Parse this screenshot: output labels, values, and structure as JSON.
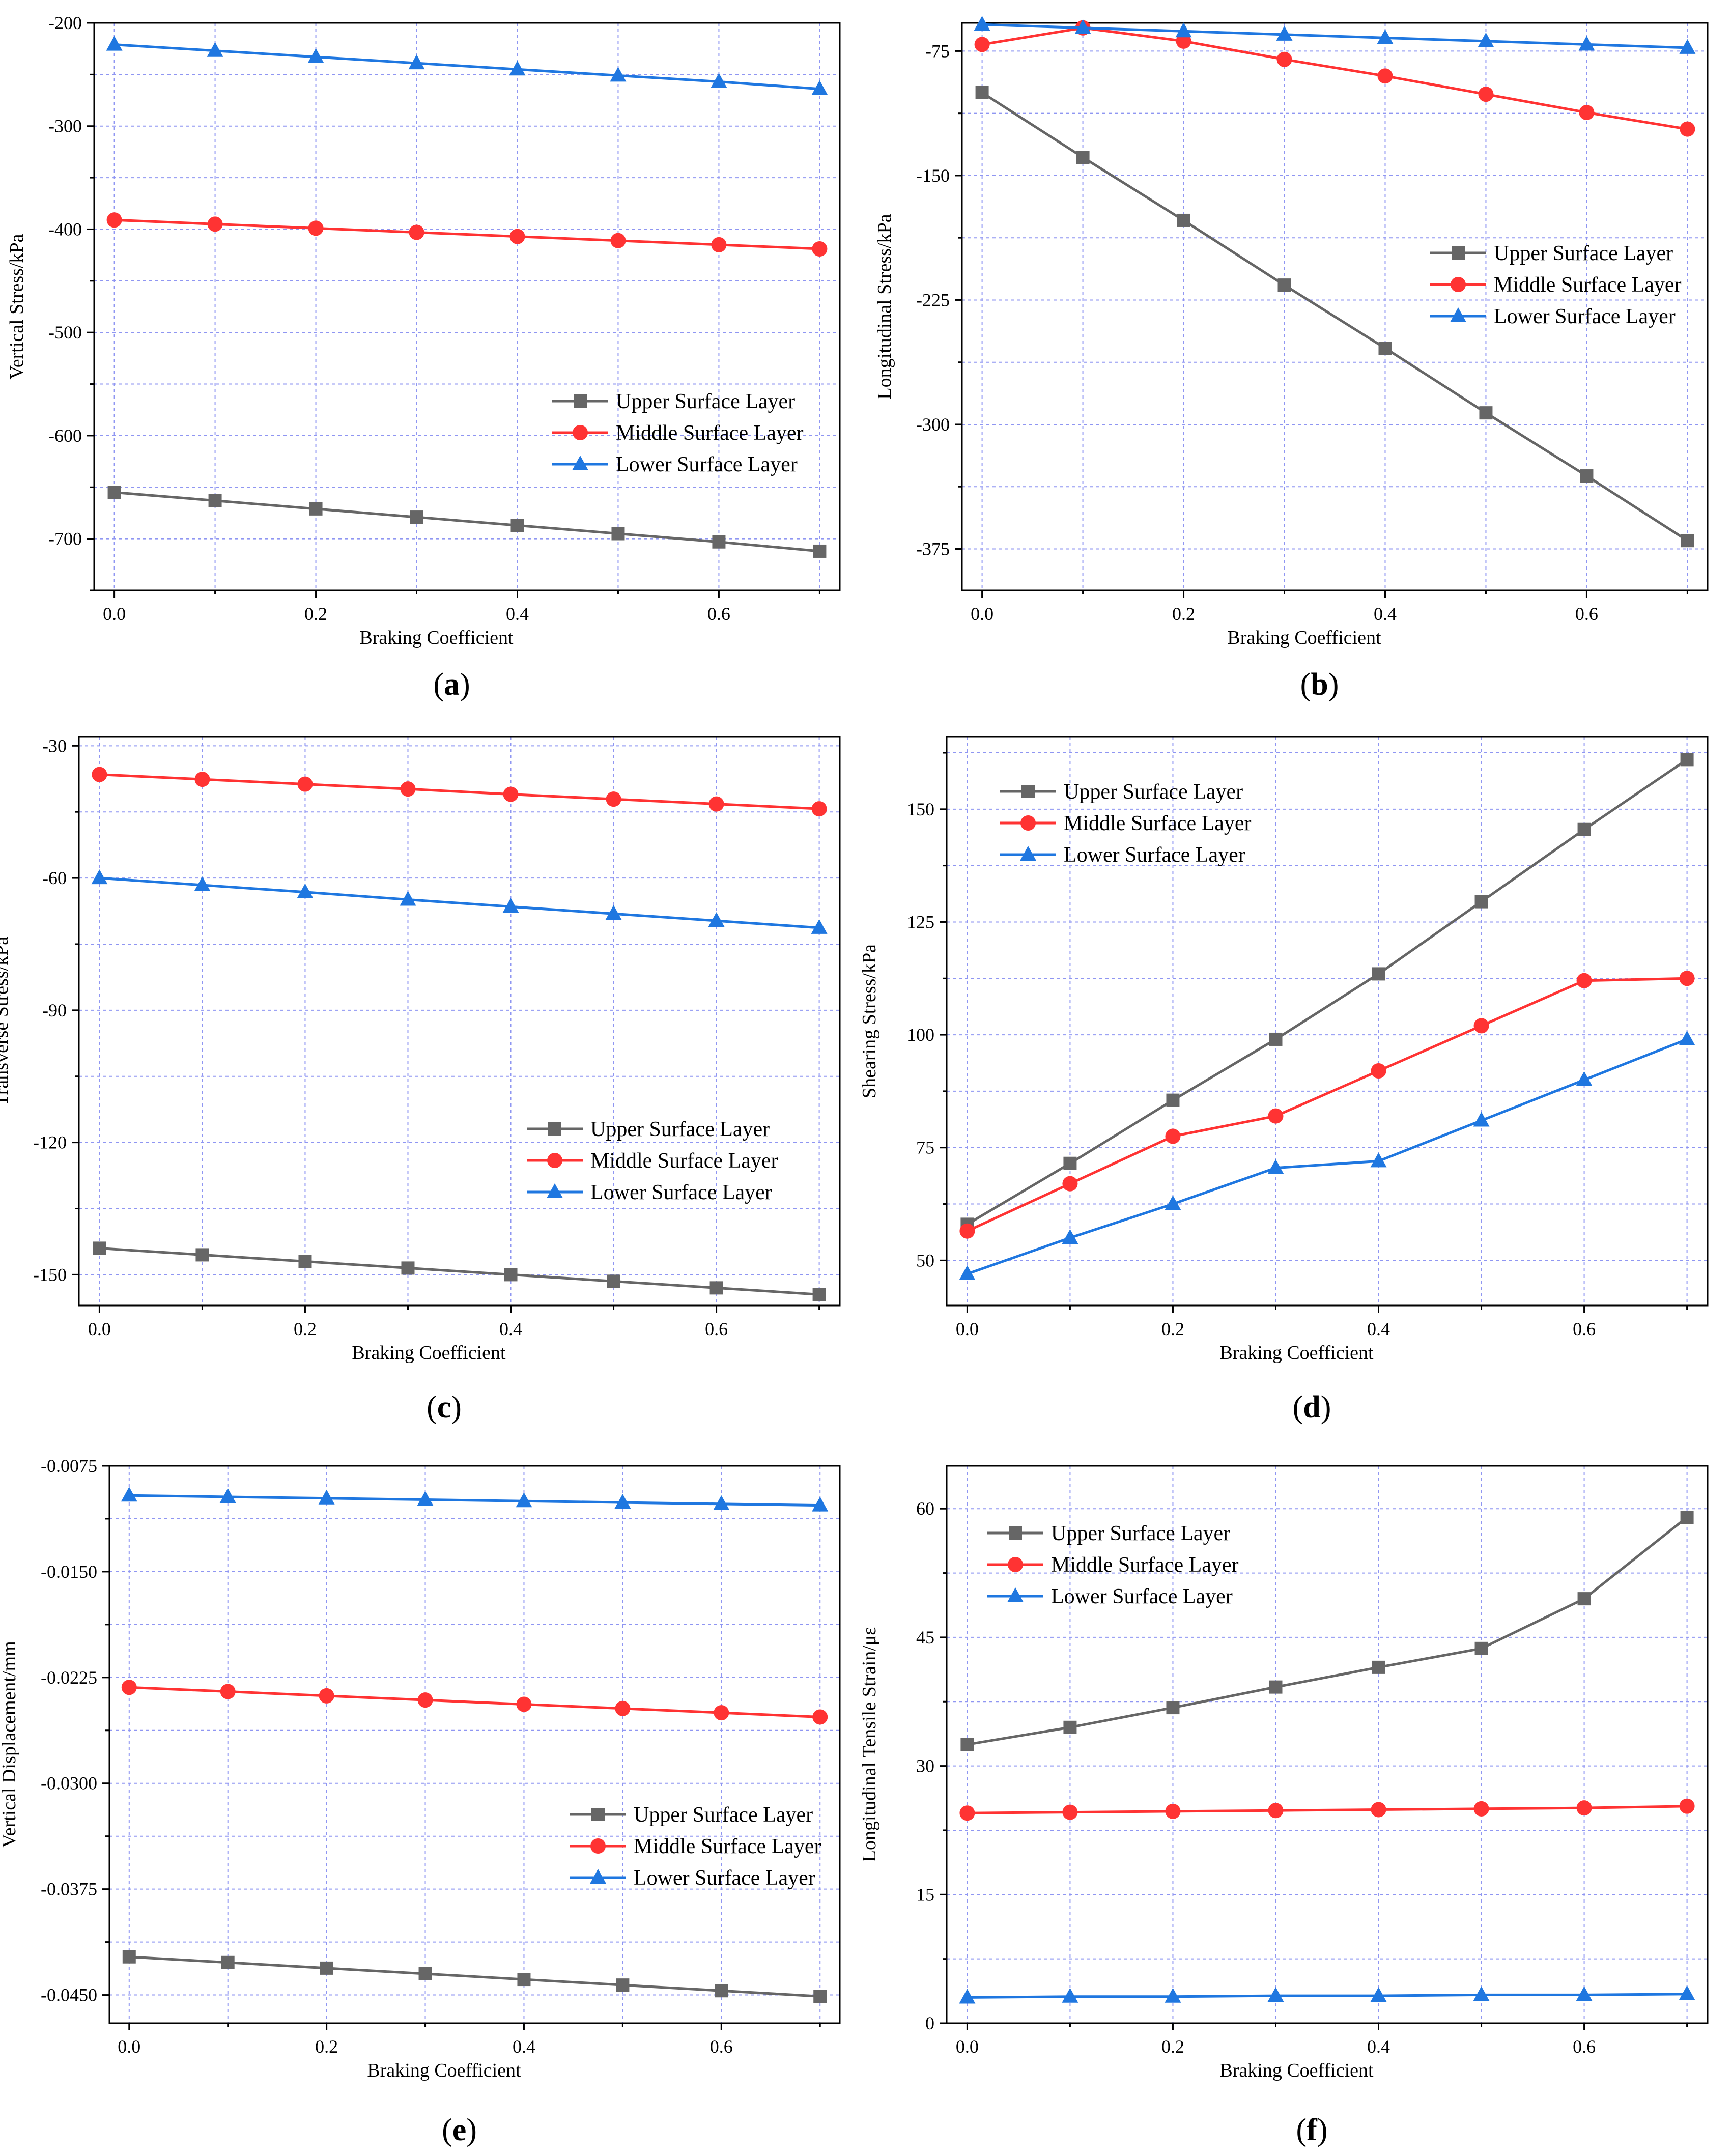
{
  "colors": {
    "upper": "#666666",
    "middle": "#ff3333",
    "lower": "#1f77e0",
    "grid": "#8f96f2",
    "axis": "#000000"
  },
  "series_meta": [
    {
      "name": "Upper  Surface Layer",
      "marker": "square"
    },
    {
      "name": "Middle Surface Layer",
      "marker": "circle"
    },
    {
      "name": "Lower  Surface Layer",
      "marker": "triangle"
    }
  ],
  "chart_data": [
    {
      "id": "a",
      "type": "line",
      "caption": "a",
      "xlabel": "Braking Coefficient",
      "ylabel": "Vertical Stress/kPa",
      "x": [
        0,
        0.1,
        0.2,
        0.3,
        0.4,
        0.5,
        0.6,
        0.7
      ],
      "xlim": [
        -0.02,
        0.72
      ],
      "ylim": [
        -750,
        -200
      ],
      "xticks": [
        0,
        0.2,
        0.4,
        0.6
      ],
      "xtick_labels": [
        "0.0",
        "0.2",
        "0.4",
        "0.6"
      ],
      "yticks": [
        -700,
        -600,
        -500,
        -400,
        -300,
        -200
      ],
      "ytick_labels": [
        "-700",
        "-600",
        "-500",
        "-400",
        "-300",
        "-200"
      ],
      "legend": "lower-right",
      "series": [
        {
          "name": "Upper  Surface Layer",
          "values": [
            -655,
            -663,
            -671,
            -679,
            -687,
            -695,
            -703,
            -712
          ]
        },
        {
          "name": "Middle Surface Layer",
          "values": [
            -391,
            -395,
            -399,
            -403,
            -407,
            -411,
            -415,
            -419
          ]
        },
        {
          "name": "Lower  Surface Layer",
          "values": [
            -221,
            -227,
            -233,
            -239,
            -245,
            -251,
            -257,
            -264
          ]
        }
      ]
    },
    {
      "id": "b",
      "type": "line",
      "caption": "b",
      "xlabel": "Braking Coefficient",
      "ylabel": "Longitudinal Stress/kPa",
      "x": [
        0,
        0.1,
        0.2,
        0.3,
        0.4,
        0.5,
        0.6,
        0.7
      ],
      "xlim": [
        -0.02,
        0.72
      ],
      "ylim": [
        -400,
        -58
      ],
      "xticks": [
        0,
        0.2,
        0.4,
        0.6
      ],
      "xtick_labels": [
        "0.0",
        "0.2",
        "0.4",
        "0.6"
      ],
      "yticks": [
        -375,
        -300,
        -225,
        -150,
        -75
      ],
      "ytick_labels": [
        "-375",
        "-300",
        "-225",
        "-150",
        "-75"
      ],
      "legend": "center-right",
      "series": [
        {
          "name": "Upper  Surface Layer",
          "values": [
            -100,
            -139,
            -177,
            -216,
            -254,
            -293,
            -331,
            -370
          ]
        },
        {
          "name": "Middle Surface Layer",
          "values": [
            -71,
            -61,
            -69,
            -80,
            -90,
            -101,
            -112,
            -122
          ]
        },
        {
          "name": "Lower  Surface Layer",
          "values": [
            -59,
            -61,
            -63,
            -65,
            -67,
            -69,
            -71,
            -73
          ]
        }
      ]
    },
    {
      "id": "c",
      "type": "line",
      "caption": "c",
      "xlabel": "Braking Coefficient",
      "ylabel": "Transverse Stress/kPa",
      "x": [
        0,
        0.1,
        0.2,
        0.3,
        0.4,
        0.5,
        0.6,
        0.7
      ],
      "xlim": [
        -0.02,
        0.72
      ],
      "ylim": [
        -157,
        -28
      ],
      "xticks": [
        0,
        0.2,
        0.4,
        0.6
      ],
      "xtick_labels": [
        "0.0",
        "0.2",
        "0.4",
        "0.6"
      ],
      "yticks": [
        -150,
        -120,
        -90,
        -60,
        -30
      ],
      "ytick_labels": [
        "-150",
        "-120",
        "-90",
        "-60",
        "-30"
      ],
      "legend": "lower-right",
      "series": [
        {
          "name": "Upper  Surface Layer",
          "values": [
            -144,
            -145.5,
            -147,
            -148.5,
            -150,
            -151.5,
            -153,
            -154.5
          ]
        },
        {
          "name": "Middle Surface Layer",
          "values": [
            -36.5,
            -37.6,
            -38.7,
            -39.8,
            -41,
            -42.1,
            -43.2,
            -44.3
          ]
        },
        {
          "name": "Lower  Surface Layer",
          "values": [
            -60,
            -61.6,
            -63.2,
            -64.9,
            -66.5,
            -68.1,
            -69.7,
            -71.3
          ]
        }
      ]
    },
    {
      "id": "d",
      "type": "line",
      "caption": "d",
      "xlabel": "Braking Coefficient",
      "ylabel": "Shearing Stress/kPa",
      "x": [
        0,
        0.1,
        0.2,
        0.3,
        0.4,
        0.5,
        0.6,
        0.7
      ],
      "xlim": [
        -0.02,
        0.72
      ],
      "ylim": [
        40,
        166
      ],
      "xticks": [
        0,
        0.2,
        0.4,
        0.6
      ],
      "xtick_labels": [
        "0.0",
        "0.2",
        "0.4",
        "0.6"
      ],
      "yticks": [
        50,
        75,
        100,
        125,
        150
      ],
      "ytick_labels": [
        "50",
        "75",
        "100",
        "125",
        "150"
      ],
      "legend": "upper-left",
      "series": [
        {
          "name": "Upper  Surface Layer",
          "values": [
            58,
            71.5,
            85.5,
            99,
            113.5,
            129.5,
            145.5,
            161
          ]
        },
        {
          "name": "Middle Surface Layer",
          "values": [
            56.5,
            67,
            77.5,
            82,
            92,
            102,
            112,
            112.5
          ]
        },
        {
          "name": "Lower  Surface Layer",
          "values": [
            47,
            55,
            62.5,
            70.5,
            72,
            81,
            90,
            99
          ]
        }
      ]
    },
    {
      "id": "e",
      "type": "line",
      "caption": "e",
      "xlabel": "Braking Coefficient",
      "ylabel": "Vertical Displacement/mm",
      "x": [
        0,
        0.1,
        0.2,
        0.3,
        0.4,
        0.5,
        0.6,
        0.7
      ],
      "xlim": [
        -0.02,
        0.72
      ],
      "ylim": [
        -0.047,
        -0.0075
      ],
      "xticks": [
        0,
        0.2,
        0.4,
        0.6
      ],
      "xtick_labels": [
        "0.0",
        "0.2",
        "0.4",
        "0.6"
      ],
      "yticks": [
        -0.045,
        -0.0375,
        -0.03,
        -0.0225,
        -0.015,
        -0.0075
      ],
      "ytick_labels": [
        "-0.0450",
        "-0.0375",
        "-0.0300",
        "-0.0225",
        "-0.0150",
        "-0.0075"
      ],
      "legend": "lower-right",
      "series": [
        {
          "name": "Upper  Surface Layer",
          "values": [
            -0.0423,
            -0.0427,
            -0.0431,
            -0.0435,
            -0.0439,
            -0.0443,
            -0.0447,
            -0.0451
          ]
        },
        {
          "name": "Middle Surface Layer",
          "values": [
            -0.0232,
            -0.0235,
            -0.0238,
            -0.0241,
            -0.0244,
            -0.0247,
            -0.025,
            -0.0253
          ]
        },
        {
          "name": "Lower  Surface Layer",
          "values": [
            -0.0096,
            -0.0097,
            -0.0098,
            -0.0099,
            -0.01,
            -0.0101,
            -0.0102,
            -0.0103
          ]
        }
      ]
    },
    {
      "id": "f",
      "type": "line",
      "caption": "f",
      "xlabel": "Braking Coefficient",
      "ylabel": "Longitudinal Tensile Strain/με",
      "x": [
        0,
        0.1,
        0.2,
        0.3,
        0.4,
        0.5,
        0.6,
        0.7
      ],
      "xlim": [
        -0.02,
        0.72
      ],
      "ylim": [
        0,
        65
      ],
      "xticks": [
        0,
        0.2,
        0.4,
        0.6
      ],
      "xtick_labels": [
        "0.0",
        "0.2",
        "0.4",
        "0.6"
      ],
      "yticks": [
        0,
        15,
        30,
        45,
        60
      ],
      "ytick_labels": [
        "0",
        "15",
        "30",
        "45",
        "60"
      ],
      "legend": "upper-left",
      "series": [
        {
          "name": "Upper  Surface Layer",
          "values": [
            32.5,
            34.5,
            36.8,
            39.2,
            41.5,
            43.7,
            49.5,
            59
          ]
        },
        {
          "name": "Middle Surface Layer",
          "values": [
            24.5,
            24.6,
            24.7,
            24.8,
            24.9,
            25,
            25.1,
            25.3
          ]
        },
        {
          "name": "Lower  Surface Layer",
          "values": [
            3,
            3.1,
            3.1,
            3.2,
            3.2,
            3.3,
            3.3,
            3.4
          ]
        }
      ]
    }
  ]
}
